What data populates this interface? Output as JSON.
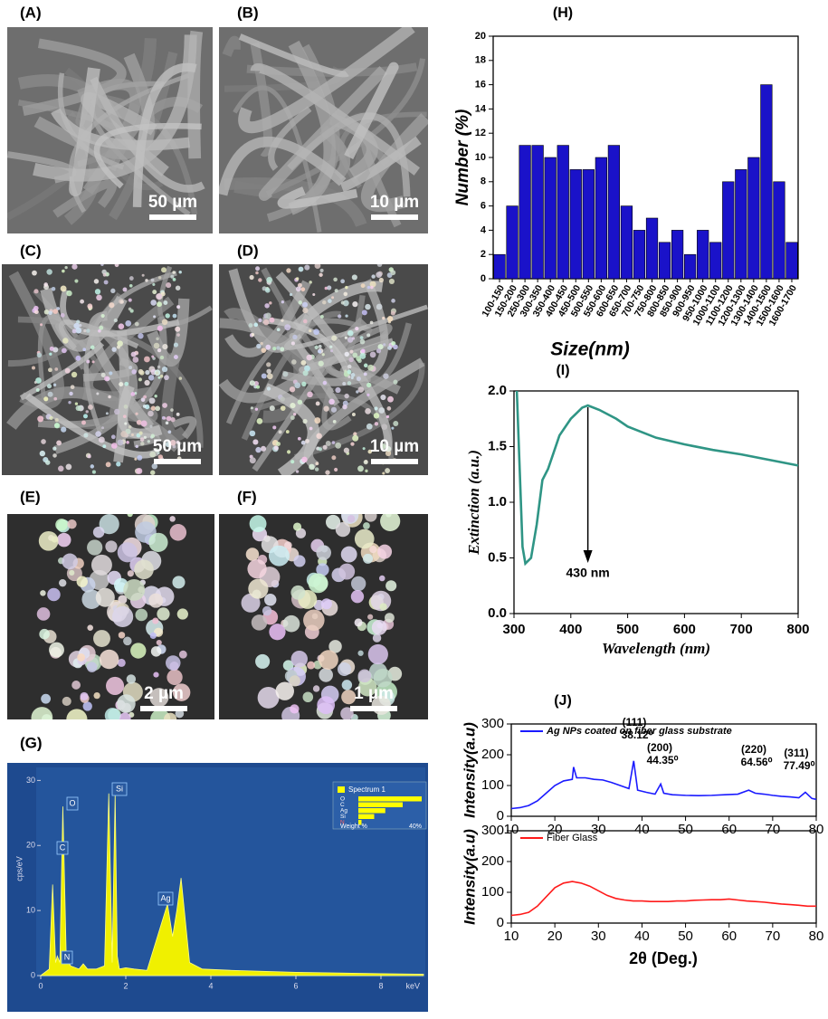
{
  "images": [
    {
      "label": "(A)",
      "scale": "50 µm"
    },
    {
      "label": "(B)",
      "scale": "10 µm"
    },
    {
      "label": "(C)",
      "scale": "50 µm"
    },
    {
      "label": "(D)",
      "scale": "10 µm"
    },
    {
      "label": "(E)",
      "scale": "2 µm"
    },
    {
      "label": "(F)",
      "scale": "1 µm"
    }
  ],
  "chart_data": [
    {
      "type": "bar",
      "title": "(H)",
      "x_label": "Size(nm)",
      "y_label": "Number (%)",
      "categories": [
        "100-150",
        "150-200",
        "250-300",
        "300-350",
        "350-400",
        "400-450",
        "450-500",
        "500-550",
        "550-600",
        "600-650",
        "650-700",
        "700-750",
        "750-800",
        "800-850",
        "850-900",
        "900-950",
        "950-1000",
        "1000-1100",
        "1100-1200",
        "1200-1300",
        "1300-1400",
        "1400-1500",
        "1500-1600",
        "1600-1700"
      ],
      "values": [
        2,
        6,
        11,
        11,
        10,
        11,
        9,
        9,
        10,
        11,
        6,
        4,
        5,
        3,
        4,
        2,
        4,
        3,
        8,
        9,
        10,
        16,
        8,
        3
      ],
      "color": "#1a12c9",
      "ylim": [
        0,
        20
      ],
      "yticks": [
        0,
        2,
        4,
        6,
        8,
        10,
        12,
        14,
        16,
        18,
        20
      ]
    },
    {
      "type": "line",
      "title": "(I)",
      "x_label": "Wavelength (nm)",
      "y_label": "Extinction (a.u.)",
      "x": [
        305,
        310,
        315,
        320,
        330,
        340,
        350,
        360,
        370,
        380,
        400,
        420,
        430,
        450,
        480,
        500,
        550,
        600,
        650,
        700,
        750,
        800
      ],
      "series": [
        {
          "color": "#2f9585",
          "values": [
            2.0,
            1.3,
            0.6,
            0.45,
            0.5,
            0.8,
            1.2,
            1.3,
            1.45,
            1.6,
            1.75,
            1.85,
            1.87,
            1.83,
            1.75,
            1.68,
            1.58,
            1.52,
            1.47,
            1.43,
            1.38,
            1.33
          ]
        }
      ],
      "annotation": {
        "value": 430,
        "label": "430 nm"
      },
      "xlim": [
        300,
        800
      ],
      "xticks": [
        300,
        400,
        500,
        600,
        700,
        800
      ],
      "ylim": [
        0,
        2
      ],
      "yticks": [
        {
          "value": 0,
          "label": "0.0"
        },
        0.5,
        {
          "value": 1,
          "label": "1.0"
        },
        1.5,
        {
          "value": 2,
          "label": "2.0"
        }
      ]
    },
    {
      "type": "line",
      "title": "(J)",
      "y_label": "Intensity(a.u)",
      "x": [
        10,
        12,
        14,
        16,
        18,
        20,
        22,
        24,
        24.3,
        25,
        27,
        29,
        31,
        33,
        35,
        37,
        38.1,
        39,
        41,
        43,
        44.3,
        45,
        47,
        50,
        53,
        56,
        59,
        62,
        64.5,
        66,
        68,
        70,
        72,
        74,
        76,
        77.5,
        79,
        80
      ],
      "series": [
        {
          "name": "Ag NPs coated on fiber glass substrate",
          "color": "#1a1aff",
          "values": [
            25,
            28,
            35,
            50,
            75,
            100,
            115,
            120,
            160,
            125,
            125,
            120,
            118,
            110,
            100,
            90,
            180,
            85,
            78,
            72,
            105,
            75,
            70,
            68,
            67,
            68,
            70,
            72,
            85,
            75,
            72,
            68,
            65,
            63,
            60,
            78,
            58,
            55
          ]
        }
      ],
      "peaks": [
        {
          "hkl": "(111)",
          "angle": "38.12⁰"
        },
        {
          "hkl": "(200)",
          "angle": "44.35⁰"
        },
        {
          "hkl": "(220)",
          "angle": "64.56⁰"
        },
        {
          "hkl": "(311)",
          "angle": "77.49⁰"
        }
      ],
      "xlim": [
        10,
        80
      ],
      "xticks": [
        10,
        20,
        30,
        40,
        50,
        60,
        70,
        80
      ],
      "ylim": [
        0,
        300
      ],
      "yticks": [
        0,
        100,
        200,
        300
      ]
    },
    {
      "type": "line",
      "x_label": "2θ (Deg.)",
      "y_label": "Intensity(a.u)",
      "x": [
        10,
        12,
        14,
        16,
        18,
        20,
        22,
        24,
        26,
        28,
        30,
        32,
        34,
        36,
        38,
        40,
        42,
        44,
        46,
        48,
        50,
        52,
        54,
        56,
        58,
        60,
        62,
        64,
        66,
        68,
        70,
        72,
        74,
        76,
        78,
        80
      ],
      "series": [
        {
          "name": "Fiber Glass",
          "color": "#ff1a1a",
          "values": [
            25,
            28,
            35,
            55,
            85,
            115,
            130,
            135,
            130,
            120,
            105,
            90,
            80,
            75,
            72,
            72,
            70,
            70,
            70,
            72,
            72,
            74,
            75,
            76,
            76,
            78,
            75,
            72,
            70,
            68,
            65,
            62,
            60,
            58,
            55,
            55
          ]
        }
      ],
      "xlim": [
        10,
        80
      ],
      "xticks": [
        10,
        20,
        30,
        40,
        50,
        60,
        70,
        80
      ],
      "ylim": [
        0,
        300
      ],
      "yticks": [
        0,
        100,
        200,
        300
      ]
    },
    {
      "type": "area",
      "title": "(G)",
      "x_label": "keV",
      "y_label": "cps/eV",
      "x": [
        0,
        0.2,
        0.28,
        0.35,
        0.39,
        0.45,
        0.52,
        0.6,
        0.7,
        0.9,
        1.0,
        1.1,
        1.3,
        1.5,
        1.6,
        1.68,
        1.75,
        1.8,
        1.85,
        2.0,
        2.2,
        2.5,
        2.98,
        3.1,
        3.2,
        3.3,
        3.5,
        3.8,
        4.5,
        6,
        8,
        9
      ],
      "series": [
        {
          "color": "#f0f000",
          "values": [
            0,
            1,
            14,
            2,
            3,
            2,
            26,
            3,
            1.5,
            1,
            1.8,
            1,
            1,
            1.5,
            28,
            2,
            28,
            3,
            1,
            1.2,
            1,
            0.8,
            11,
            6,
            10,
            15,
            2,
            1,
            0.8,
            0.5,
            0.3,
            0.2
          ]
        }
      ],
      "peak_labels": [
        "C",
        "O",
        "N",
        "Si",
        "Ag"
      ],
      "xlim": [
        0,
        9
      ],
      "xticks": [
        0,
        2,
        4,
        6,
        8
      ],
      "ylim": [
        0,
        32
      ],
      "yticks": [
        0,
        10,
        20,
        30
      ]
    },
    {
      "type": "hbar",
      "legend": "Spectrum 1",
      "categories": [
        "O",
        "C",
        "Ag",
        "Si",
        "N"
      ],
      "values": [
        40,
        28,
        17,
        10,
        2
      ],
      "x_label": "Weight %",
      "xlim": [
        0,
        40
      ],
      "xticks": [
        {
          "value": 40,
          "label": "40%"
        }
      ],
      "color": "#ffff00"
    }
  ]
}
